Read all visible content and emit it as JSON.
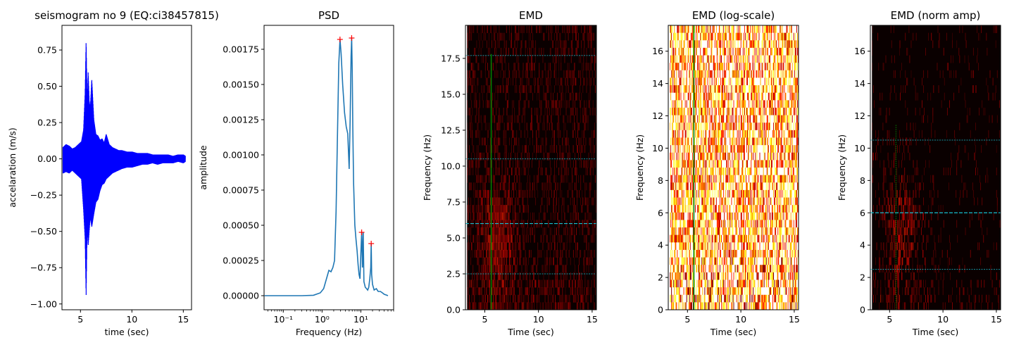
{
  "colors": {
    "seismogram": "#0000ff",
    "psd": "#1f77b4",
    "peak": "#ff0000",
    "hline": "#17becf",
    "vline": "#008000",
    "background_dark": "#0a0000"
  },
  "chart_data": [
    {
      "type": "line",
      "title": "seismogram no 9 (EQ:ci38457815)",
      "xlabel": "time (sec)",
      "ylabel": "accelaration (m/s)",
      "xlim": [
        3.2,
        15.8
      ],
      "ylim": [
        -1.04,
        0.92
      ],
      "xticks": [
        5,
        10,
        15
      ],
      "xtick_labels": [
        "5",
        "10",
        "15"
      ],
      "yticks": [
        -1.0,
        -0.75,
        -0.5,
        -0.25,
        0.0,
        0.25,
        0.5,
        0.75
      ],
      "ytick_labels": [
        "−1.00",
        "−0.75",
        "−0.50",
        "−0.25",
        "0.00",
        "0.25",
        "0.50",
        "0.75"
      ],
      "series": [
        {
          "x": [
            3.3,
            3.6,
            3.9,
            4.2,
            4.5,
            4.8,
            5.1,
            5.3,
            5.45,
            5.55,
            5.65,
            5.75,
            5.85,
            5.95,
            6.1,
            6.3,
            6.5,
            6.7,
            6.9,
            7.1,
            7.3,
            7.5,
            7.8,
            8.1,
            8.4,
            8.7,
            9.0,
            9.5,
            10.0,
            10.5,
            11.0,
            11.5,
            12.0,
            12.5,
            13.0,
            13.5,
            14.0,
            14.5,
            15.0,
            15.2
          ],
          "y_high": [
            0.08,
            0.1,
            0.09,
            0.07,
            0.08,
            0.1,
            0.12,
            0.2,
            0.45,
            0.82,
            0.38,
            0.6,
            0.4,
            0.35,
            0.55,
            0.27,
            0.17,
            0.16,
            0.13,
            0.14,
            0.11,
            0.17,
            0.1,
            0.08,
            0.07,
            0.06,
            0.06,
            0.05,
            0.05,
            0.04,
            0.04,
            0.04,
            0.03,
            0.03,
            0.03,
            0.03,
            0.02,
            0.03,
            0.03,
            0.02
          ],
          "y_low": [
            -0.1,
            -0.09,
            -0.1,
            -0.08,
            -0.1,
            -0.12,
            -0.14,
            -0.35,
            -0.55,
            -0.95,
            -0.47,
            -0.6,
            -0.5,
            -0.4,
            -0.47,
            -0.38,
            -0.3,
            -0.28,
            -0.22,
            -0.18,
            -0.17,
            -0.14,
            -0.12,
            -0.1,
            -0.09,
            -0.08,
            -0.07,
            -0.06,
            -0.06,
            -0.05,
            -0.04,
            -0.04,
            -0.03,
            -0.04,
            -0.03,
            -0.03,
            -0.03,
            -0.02,
            -0.03,
            -0.02
          ]
        }
      ]
    },
    {
      "type": "line",
      "title": "PSD",
      "xlabel": "Frequency (Hz)",
      "ylabel": "amplitude",
      "xscale": "log",
      "xlim": [
        0.032,
        70
      ],
      "ylim": [
        -0.0001,
        0.00192
      ],
      "xticks": [
        0.1,
        1,
        10
      ],
      "xtick_labels": [
        "10⁻¹",
        "10⁰",
        "10¹"
      ],
      "yticks": [
        0.0,
        0.00025,
        0.0005,
        0.00075,
        0.001,
        0.00125,
        0.0015,
        0.00175
      ],
      "ytick_labels": [
        "0.00000",
        "0.00025",
        "0.00050",
        "0.00075",
        "0.00100",
        "0.00125",
        "0.00150",
        "0.00175"
      ],
      "series": [
        {
          "x": [
            0.033,
            0.1,
            0.3,
            0.6,
            0.9,
            1.1,
            1.3,
            1.5,
            1.7,
            1.9,
            2.1,
            2.3,
            2.5,
            2.7,
            2.9,
            3.1,
            3.4,
            3.8,
            4.2,
            4.6,
            5.0,
            5.3,
            5.6,
            5.8,
            6.0,
            6.2,
            6.5,
            7.0,
            7.5,
            8.0,
            8.5,
            9.0,
            9.5,
            10.0,
            10.5,
            11.0,
            11.5,
            12.0,
            13.0,
            14.0,
            15.0,
            16.0,
            17.0,
            18.0,
            18.5,
            19.0,
            20.0,
            22.0,
            25.0,
            28.0,
            32.0,
            36.0,
            40.0,
            45.0,
            50.0
          ],
          "y": [
            0.0,
            0.0,
            0.0,
            3e-06,
            2e-05,
            5e-05,
            0.00012,
            0.00018,
            0.00017,
            0.0002,
            0.00025,
            0.0006,
            0.00115,
            0.00165,
            0.00182,
            0.00172,
            0.0015,
            0.0013,
            0.0012,
            0.00115,
            0.0009,
            0.00125,
            0.0017,
            0.00183,
            0.0016,
            0.0012,
            0.0008,
            0.0005,
            0.0004,
            0.00032,
            0.00022,
            0.00015,
            0.00012,
            0.0003,
            0.00045,
            0.0002,
            0.00045,
            0.0001,
            6e-05,
            5e-05,
            4e-05,
            6e-05,
            0.00012,
            0.0002,
            0.00037,
            0.00015,
            8e-05,
            4e-05,
            5e-05,
            3e-05,
            3e-05,
            2e-05,
            1e-05,
            5e-06,
            0.0
          ]
        }
      ],
      "peaks": {
        "x": [
          2.9,
          5.8,
          10.5,
          18.5
        ],
        "y": [
          0.00182,
          0.00183,
          0.00045,
          0.00037
        ]
      }
    },
    {
      "type": "heatmap",
      "title": "EMD",
      "xlabel": "Time (sec)",
      "ylabel": "Frequency (Hz)",
      "xlim": [
        3.2,
        15.4
      ],
      "ylim": [
        0,
        19.8
      ],
      "xticks": [
        5,
        10,
        15
      ],
      "xtick_labels": [
        "5",
        "10",
        "15"
      ],
      "yticks": [
        0,
        2.5,
        5,
        7.5,
        10,
        12.5,
        15,
        17.5
      ],
      "ytick_labels": [
        "0.0",
        "2.5",
        "5.0",
        "7.5",
        "10.0",
        "12.5",
        "15.0",
        "17.5"
      ],
      "hlines_dashed": [
        6.0
      ],
      "hlines_dotted": [
        2.5,
        10.5,
        17.7
      ],
      "vline": {
        "x": 5.6,
        "y_max": 17.8
      },
      "style": "dark"
    },
    {
      "type": "heatmap",
      "title": "EMD (log-scale)",
      "xlabel": "Time (sec)",
      "ylabel": "Frequency (Hz)",
      "xlim": [
        3.2,
        15.4
      ],
      "ylim": [
        0,
        17.6
      ],
      "xticks": [
        5,
        10,
        15
      ],
      "xtick_labels": [
        "5",
        "10",
        "15"
      ],
      "yticks": [
        0,
        2,
        4,
        6,
        8,
        10,
        12,
        14,
        16
      ],
      "ytick_labels": [
        "0",
        "2",
        "4",
        "6",
        "8",
        "10",
        "12",
        "14",
        "16"
      ],
      "vline": {
        "x": 5.6,
        "y_max": 17.6
      },
      "style": "bright"
    },
    {
      "type": "heatmap",
      "title": "EMD (norm amp)",
      "xlabel": "Time (sec)",
      "ylabel": "Frequency (Hz)",
      "xlim": [
        3.2,
        15.4
      ],
      "ylim": [
        0,
        17.6
      ],
      "xticks": [
        5,
        10,
        15
      ],
      "xtick_labels": [
        "5",
        "10",
        "15"
      ],
      "yticks": [
        0,
        2,
        4,
        6,
        8,
        10,
        12,
        14,
        16
      ],
      "ytick_labels": [
        "0",
        "2",
        "4",
        "6",
        "8",
        "10",
        "12",
        "14",
        "16"
      ],
      "hlines_dashed": [
        6.0
      ],
      "hlines_dotted": [
        2.5,
        10.5
      ],
      "vline": {
        "x": 5.6,
        "y_max": 11.5,
        "style": "dotted"
      },
      "style": "sparse"
    }
  ]
}
